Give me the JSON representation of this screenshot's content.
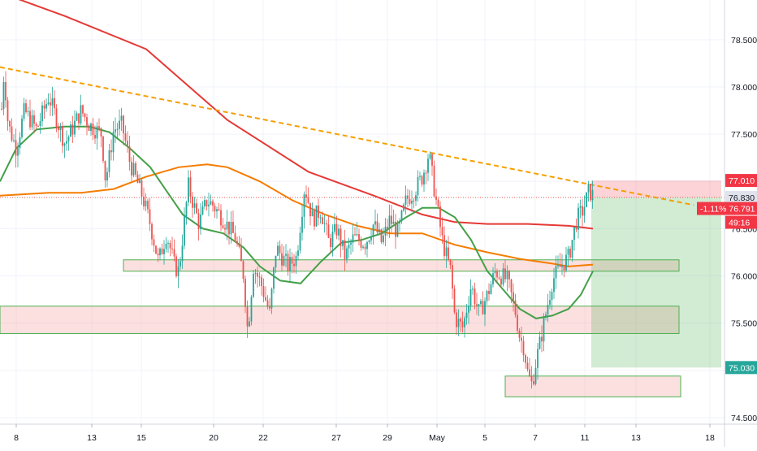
{
  "chart_data": {
    "type": "candlestick",
    "x_ticks": [
      "8",
      "13",
      "15",
      "20",
      "22",
      "27",
      "29",
      "May",
      "5",
      "7",
      "11",
      "13",
      "18"
    ],
    "y_ticks": [
      "78.500",
      "78.000",
      "77.500",
      "77.000",
      "76.500",
      "76.000",
      "75.500",
      "75.000",
      "74.500"
    ],
    "ylim": [
      74.19,
      78.92
    ],
    "grid": true,
    "price_labels": {
      "target": "77.010",
      "last": "76.830",
      "change": "-1.11%",
      "current": "76.791",
      "countdown": "49:16",
      "stop": "75.030"
    },
    "price_levels": {
      "target": 77.01,
      "last": 76.83,
      "current": 76.791,
      "stop": 75.03
    },
    "price_path": [
      [
        0,
        77.5
      ],
      [
        5,
        78.17
      ],
      [
        10,
        77.6
      ],
      [
        20,
        77.35
      ],
      [
        30,
        77.75
      ],
      [
        45,
        77.55
      ],
      [
        60,
        77.9
      ],
      [
        80,
        77.4
      ],
      [
        100,
        77.75
      ],
      [
        110,
        77.6
      ],
      [
        125,
        77.5
      ],
      [
        130,
        77.0
      ],
      [
        140,
        77.55
      ],
      [
        150,
        77.6
      ],
      [
        160,
        77.2
      ],
      [
        175,
        76.85
      ],
      [
        185,
        76.55
      ],
      [
        195,
        76.15
      ],
      [
        205,
        76.45
      ],
      [
        215,
        76.1
      ],
      [
        220,
        76.05
      ],
      [
        232,
        76.95
      ],
      [
        245,
        76.55
      ],
      [
        255,
        76.8
      ],
      [
        262,
        76.75
      ],
      [
        275,
        76.6
      ],
      [
        290,
        76.4
      ],
      [
        300,
        76.0
      ],
      [
        305,
        75.4
      ],
      [
        312,
        76.1
      ],
      [
        322,
        75.9
      ],
      [
        332,
        75.6
      ],
      [
        340,
        76.3
      ],
      [
        355,
        76.1
      ],
      [
        365,
        76.2
      ],
      [
        375,
        76.95
      ],
      [
        385,
        76.6
      ],
      [
        395,
        76.7
      ],
      [
        405,
        76.35
      ],
      [
        415,
        76.5
      ],
      [
        425,
        76.2
      ],
      [
        435,
        76.4
      ],
      [
        450,
        76.35
      ],
      [
        460,
        76.55
      ],
      [
        470,
        76.35
      ],
      [
        480,
        76.6
      ],
      [
        490,
        76.45
      ],
      [
        500,
        76.8
      ],
      [
        510,
        76.9
      ],
      [
        520,
        77.05
      ],
      [
        528,
        77.3
      ],
      [
        535,
        76.9
      ],
      [
        545,
        76.35
      ],
      [
        555,
        76.05
      ],
      [
        560,
        75.55
      ],
      [
        570,
        75.45
      ],
      [
        580,
        75.9
      ],
      [
        590,
        75.6
      ],
      [
        600,
        75.8
      ],
      [
        610,
        76.05
      ],
      [
        625,
        75.95
      ],
      [
        635,
        75.6
      ],
      [
        640,
        75.35
      ],
      [
        645,
        75.25
      ],
      [
        650,
        74.95
      ],
      [
        655,
        74.85
      ],
      [
        660,
        75.1
      ],
      [
        665,
        75.3
      ],
      [
        672,
        75.6
      ],
      [
        680,
        75.95
      ],
      [
        690,
        76.1
      ],
      [
        700,
        76.2
      ],
      [
        710,
        76.6
      ],
      [
        718,
        76.7
      ],
      [
        725,
        76.9
      ],
      [
        732,
        76.83
      ]
    ],
    "series": [
      {
        "color": "#e53935",
        "points": [
          [
            0,
            79.0
          ],
          [
            80,
            78.75
          ],
          [
            180,
            78.4
          ],
          [
            280,
            77.65
          ],
          [
            380,
            77.1
          ],
          [
            460,
            76.85
          ],
          [
            520,
            76.65
          ],
          [
            560,
            76.57
          ],
          [
            600,
            76.55
          ],
          [
            650,
            76.55
          ],
          [
            700,
            76.53
          ],
          [
            730,
            76.5
          ]
        ]
      },
      {
        "color": "#f57c00",
        "points": [
          [
            0,
            76.85
          ],
          [
            60,
            76.88
          ],
          [
            100,
            76.88
          ],
          [
            140,
            76.92
          ],
          [
            180,
            77.05
          ],
          [
            220,
            77.15
          ],
          [
            255,
            77.18
          ],
          [
            280,
            77.15
          ],
          [
            320,
            77.0
          ],
          [
            360,
            76.8
          ],
          [
            400,
            76.65
          ],
          [
            440,
            76.53
          ],
          [
            480,
            76.45
          ],
          [
            520,
            76.45
          ],
          [
            560,
            76.33
          ],
          [
            600,
            76.25
          ],
          [
            640,
            76.18
          ],
          [
            680,
            76.13
          ],
          [
            700,
            76.1
          ],
          [
            730,
            76.12
          ]
        ]
      },
      {
        "color": "#43a047",
        "points": [
          [
            0,
            77.0
          ],
          [
            20,
            77.35
          ],
          [
            45,
            77.55
          ],
          [
            80,
            77.58
          ],
          [
            110,
            77.58
          ],
          [
            135,
            77.52
          ],
          [
            160,
            77.35
          ],
          [
            185,
            77.15
          ],
          [
            205,
            76.9
          ],
          [
            225,
            76.65
          ],
          [
            250,
            76.5
          ],
          [
            275,
            76.45
          ],
          [
            300,
            76.3
          ],
          [
            320,
            76.1
          ],
          [
            345,
            75.95
          ],
          [
            370,
            75.92
          ],
          [
            395,
            76.15
          ],
          [
            420,
            76.35
          ],
          [
            445,
            76.38
          ],
          [
            470,
            76.45
          ],
          [
            500,
            76.62
          ],
          [
            520,
            76.72
          ],
          [
            540,
            76.72
          ],
          [
            560,
            76.62
          ],
          [
            580,
            76.38
          ],
          [
            600,
            76.05
          ],
          [
            620,
            75.85
          ],
          [
            640,
            75.65
          ],
          [
            660,
            75.55
          ],
          [
            680,
            75.58
          ],
          [
            700,
            75.65
          ],
          [
            715,
            75.8
          ],
          [
            730,
            76.05
          ]
        ]
      },
      {
        "color": "#f59f00",
        "dashed": true,
        "points": [
          [
            0,
            78.21
          ],
          [
            854,
            76.75
          ]
        ]
      }
    ],
    "zones": [
      {
        "x0": 152,
        "x1": 836,
        "y0": 76.05,
        "y1": 76.17
      },
      {
        "x0": 0,
        "x1": 836,
        "y0": 75.39,
        "y1": 75.68
      },
      {
        "x0": 622,
        "x1": 838,
        "y0": 74.72,
        "y1": 74.94
      }
    ],
    "position": {
      "x0": 728,
      "x1": 888,
      "entry": 76.83,
      "target": 77.01,
      "stop": 75.03
    }
  }
}
